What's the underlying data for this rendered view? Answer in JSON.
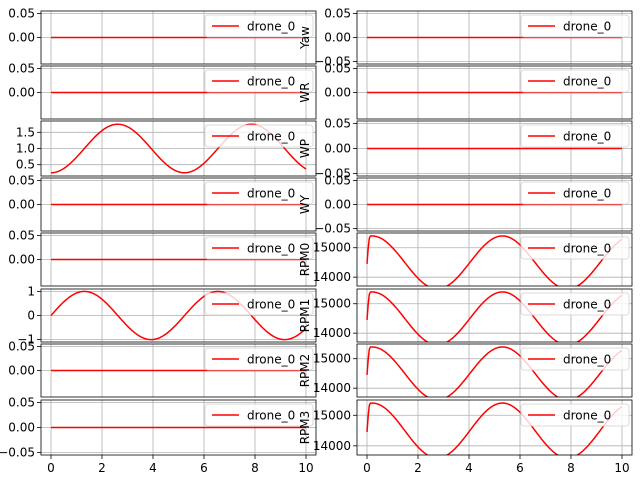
{
  "figure": {
    "background": "#ffffff",
    "line_color": "#ff0000",
    "grid_color": "#b0b0b0"
  },
  "chart_data": [
    {
      "type": "line",
      "panel": "left-1",
      "ylabel": "",
      "x": [
        0,
        10
      ],
      "ylim": [
        -0.055,
        0.055
      ],
      "yticks": [
        {
          "v": 0.05,
          "label": "0.05"
        },
        {
          "v": 0.0,
          "label": "0.00"
        }
      ],
      "xticks": [],
      "series": [
        {
          "name": "drone_0",
          "expr": "0"
        }
      ],
      "grid": true,
      "legend": "upper-right"
    },
    {
      "type": "line",
      "panel": "left-2",
      "ylabel": "",
      "x": [
        0,
        10
      ],
      "ylim": [
        -0.055,
        0.055
      ],
      "yticks": [
        {
          "v": 0.05,
          "label": "0.05"
        },
        {
          "v": 0.0,
          "label": "0.00"
        }
      ],
      "xticks": [],
      "series": [
        {
          "name": "drone_0",
          "expr": "0"
        }
      ],
      "grid": true,
      "legend": "upper-right"
    },
    {
      "type": "line",
      "panel": "left-3",
      "ylabel": "",
      "x": [
        0,
        10
      ],
      "ylim": [
        0.15,
        1.85
      ],
      "yticks": [
        {
          "v": 1.5,
          "label": "1.5"
        },
        {
          "v": 1.0,
          "label": "1.0"
        },
        {
          "v": 0.5,
          "label": "0.5"
        }
      ],
      "xticks": [],
      "series": [
        {
          "name": "drone_0",
          "expr": "1.0 - 0.75*cos(1.2*x)"
        }
      ],
      "grid": true,
      "legend": "upper-right"
    },
    {
      "type": "line",
      "panel": "left-4",
      "ylabel": "",
      "x": [
        0,
        10
      ],
      "ylim": [
        -0.055,
        0.055
      ],
      "yticks": [
        {
          "v": 0.05,
          "label": "0.05"
        },
        {
          "v": 0.0,
          "label": "0.00"
        }
      ],
      "xticks": [],
      "series": [
        {
          "name": "drone_0",
          "expr": "0"
        }
      ],
      "grid": true,
      "legend": "upper-right"
    },
    {
      "type": "line",
      "panel": "left-5",
      "ylabel": "",
      "x": [
        0,
        10
      ],
      "ylim": [
        -0.055,
        0.055
      ],
      "yticks": [
        {
          "v": 0.05,
          "label": "0.05"
        },
        {
          "v": 0.0,
          "label": "0.00"
        }
      ],
      "xticks": [],
      "series": [
        {
          "name": "drone_0",
          "expr": "0"
        }
      ],
      "grid": true,
      "legend": "upper-right"
    },
    {
      "type": "line",
      "panel": "left-6",
      "ylabel": "",
      "x": [
        0,
        10
      ],
      "ylim": [
        -1.1,
        1.1
      ],
      "yticks": [
        {
          "v": 1.0,
          "label": "1"
        },
        {
          "v": 0.0,
          "label": "0"
        },
        {
          "v": -1.0,
          "label": "−1"
        }
      ],
      "xticks": [],
      "series": [
        {
          "name": "drone_0",
          "expr": "sin(1.2*x)"
        }
      ],
      "grid": true,
      "legend": "upper-right"
    },
    {
      "type": "line",
      "panel": "left-7",
      "ylabel": "",
      "x": [
        0,
        10
      ],
      "ylim": [
        -0.055,
        0.055
      ],
      "yticks": [
        {
          "v": 0.05,
          "label": "0.05"
        },
        {
          "v": 0.0,
          "label": "0.00"
        }
      ],
      "xticks": [],
      "series": [
        {
          "name": "drone_0",
          "expr": "0"
        }
      ],
      "grid": true,
      "legend": "upper-right"
    },
    {
      "type": "line",
      "panel": "left-8",
      "ylabel": "",
      "x": [
        0,
        10
      ],
      "ylim": [
        -0.055,
        0.055
      ],
      "yticks": [
        {
          "v": 0.05,
          "label": "0.05"
        },
        {
          "v": 0.0,
          "label": "0.00"
        },
        {
          "v": -0.05,
          "label": "−0.05"
        }
      ],
      "xticks": [
        {
          "v": 0,
          "label": "0"
        },
        {
          "v": 2,
          "label": "2"
        },
        {
          "v": 4,
          "label": "4"
        },
        {
          "v": 6,
          "label": "6"
        },
        {
          "v": 8,
          "label": "8"
        },
        {
          "v": 10,
          "label": "10"
        }
      ],
      "series": [
        {
          "name": "drone_0",
          "expr": "0"
        }
      ],
      "grid": true,
      "legend": "upper-right"
    },
    {
      "type": "line",
      "panel": "right-1",
      "ylabel": "Yaw",
      "x": [
        0,
        10
      ],
      "ylim": [
        -0.055,
        0.055
      ],
      "yticks": [
        {
          "v": 0.05,
          "label": "0.05"
        },
        {
          "v": 0.0,
          "label": "0.00"
        },
        {
          "v": -0.05,
          "label": "−0.05"
        }
      ],
      "xticks": [],
      "series": [
        {
          "name": "drone_0",
          "expr": "0"
        }
      ],
      "grid": true,
      "legend": "upper-right"
    },
    {
      "type": "line",
      "panel": "right-2",
      "ylabel": "WR",
      "x": [
        0,
        10
      ],
      "ylim": [
        -0.055,
        0.055
      ],
      "yticks": [
        {
          "v": 0.05,
          "label": "0.05"
        },
        {
          "v": 0.0,
          "label": "0.00"
        }
      ],
      "xticks": [],
      "series": [
        {
          "name": "drone_0",
          "expr": "0"
        }
      ],
      "grid": true,
      "legend": "upper-right"
    },
    {
      "type": "line",
      "panel": "right-3",
      "ylabel": "WP",
      "x": [
        0,
        10
      ],
      "ylim": [
        -0.055,
        0.055
      ],
      "yticks": [
        {
          "v": 0.05,
          "label": "0.05"
        },
        {
          "v": 0.0,
          "label": "0.00"
        },
        {
          "v": -0.05,
          "label": "−0.05"
        }
      ],
      "xticks": [],
      "series": [
        {
          "name": "drone_0",
          "expr": "0"
        }
      ],
      "grid": true,
      "legend": "upper-right"
    },
    {
      "type": "line",
      "panel": "right-4",
      "ylabel": "WY",
      "x": [
        0,
        10
      ],
      "ylim": [
        -0.055,
        0.055
      ],
      "yticks": [
        {
          "v": 0.05,
          "label": "0.05"
        },
        {
          "v": 0.0,
          "label": "0.00"
        },
        {
          "v": -0.05,
          "label": "−0.05"
        }
      ],
      "xticks": [],
      "series": [
        {
          "name": "drone_0",
          "expr": "0"
        }
      ],
      "grid": true,
      "legend": "upper-right"
    },
    {
      "type": "line",
      "panel": "right-5",
      "ylabel": "RPM0",
      "x": [
        0,
        10
      ],
      "ylim": [
        13700,
        15500
      ],
      "yticks": [
        {
          "v": 15000,
          "label": "15000"
        },
        {
          "v": 14000,
          "label": "14000"
        }
      ],
      "xticks": [],
      "series": [
        {
          "name": "drone_0",
          "expr": "rpm"
        }
      ],
      "grid": true,
      "legend": "upper-right"
    },
    {
      "type": "line",
      "panel": "right-6",
      "ylabel": "RPM1",
      "x": [
        0,
        10
      ],
      "ylim": [
        13700,
        15500
      ],
      "yticks": [
        {
          "v": 15000,
          "label": "15000"
        },
        {
          "v": 14000,
          "label": "14000"
        }
      ],
      "xticks": [],
      "series": [
        {
          "name": "drone_0",
          "expr": "rpm"
        }
      ],
      "grid": true,
      "legend": "upper-right"
    },
    {
      "type": "line",
      "panel": "right-7",
      "ylabel": "RPM2",
      "x": [
        0,
        10
      ],
      "ylim": [
        13700,
        15500
      ],
      "yticks": [
        {
          "v": 15000,
          "label": "15000"
        },
        {
          "v": 14000,
          "label": "14000"
        }
      ],
      "xticks": [],
      "series": [
        {
          "name": "drone_0",
          "expr": "rpm"
        }
      ],
      "grid": true,
      "legend": "upper-right"
    },
    {
      "type": "line",
      "panel": "right-8",
      "ylabel": "RPM3",
      "x": [
        0,
        10
      ],
      "ylim": [
        13700,
        15500
      ],
      "yticks": [
        {
          "v": 15000,
          "label": "15000"
        },
        {
          "v": 14000,
          "label": "14000"
        }
      ],
      "xticks": [
        {
          "v": 0,
          "label": "0"
        },
        {
          "v": 2,
          "label": "2"
        },
        {
          "v": 4,
          "label": "4"
        },
        {
          "v": 6,
          "label": "6"
        },
        {
          "v": 8,
          "label": "8"
        },
        {
          "v": 10,
          "label": "10"
        }
      ],
      "series": [
        {
          "name": "drone_0",
          "expr": "rpm"
        }
      ],
      "grid": true,
      "legend": "upper-right"
    }
  ]
}
